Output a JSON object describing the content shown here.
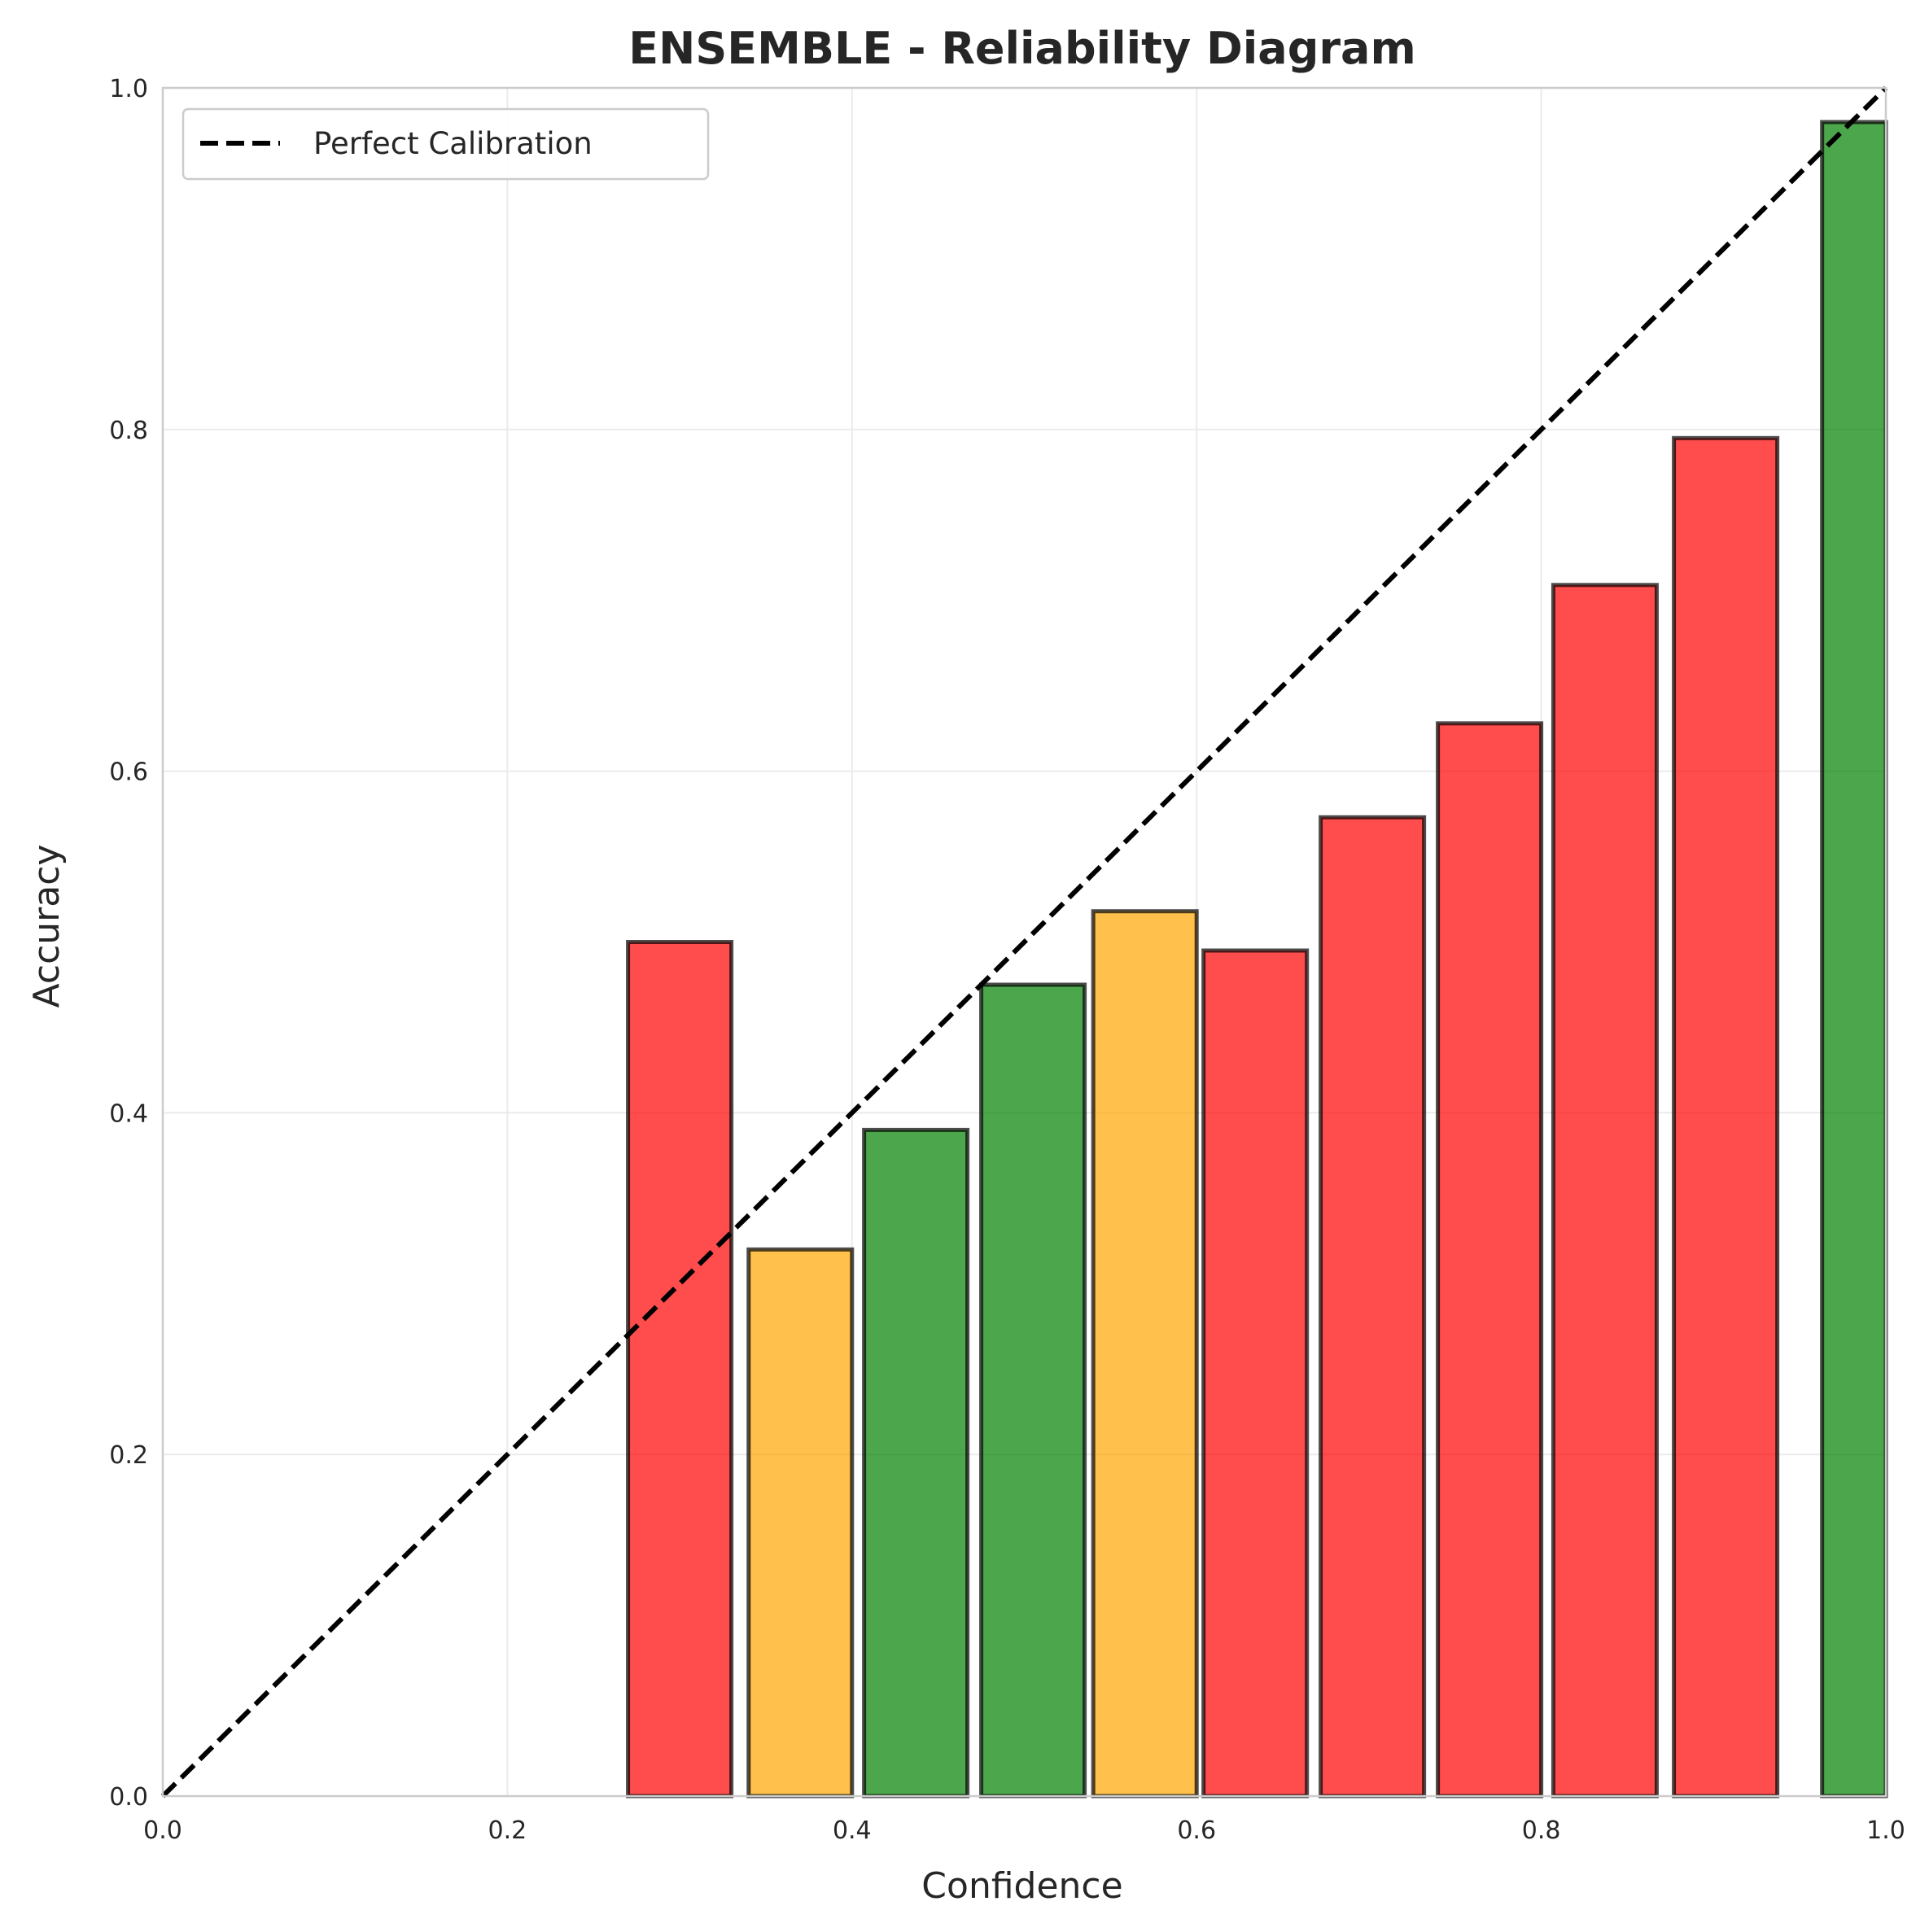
{
  "chart_data": {
    "type": "bar",
    "title": "ENSEMBLE - Reliability Diagram",
    "xlabel": "Confidence",
    "ylabel": "Accuracy",
    "xlim": [
      0,
      1
    ],
    "ylim": [
      0,
      1
    ],
    "xticks": [
      "0.0",
      "0.2",
      "0.4",
      "0.6",
      "0.8",
      "1.0"
    ],
    "yticks": [
      "0.0",
      "0.2",
      "0.4",
      "0.6",
      "0.8",
      "1.0"
    ],
    "grid": true,
    "legend": {
      "position": "upper-left",
      "entries": [
        "Perfect Calibration"
      ]
    },
    "reference_line": {
      "name": "Perfect Calibration",
      "x": [
        0,
        1
      ],
      "y": [
        0,
        1
      ],
      "style": "dashed",
      "color": "#000000"
    },
    "colors": {
      "red": "#ff0000",
      "orange": "#ffa500",
      "green": "#008000"
    },
    "bars": [
      {
        "x": 0.255,
        "width": 0.048,
        "value": 0.0,
        "color": "red"
      },
      {
        "x": 0.3,
        "width": 0.06,
        "value": 0.5,
        "color": "red"
      },
      {
        "x": 0.37,
        "width": 0.06,
        "value": 0.32,
        "color": "orange"
      },
      {
        "x": 0.437,
        "width": 0.06,
        "value": 0.39,
        "color": "green"
      },
      {
        "x": 0.505,
        "width": 0.06,
        "value": 0.475,
        "color": "green"
      },
      {
        "x": 0.57,
        "width": 0.06,
        "value": 0.518,
        "color": "orange"
      },
      {
        "x": 0.634,
        "width": 0.06,
        "value": 0.495,
        "color": "red"
      },
      {
        "x": 0.702,
        "width": 0.06,
        "value": 0.573,
        "color": "red"
      },
      {
        "x": 0.77,
        "width": 0.06,
        "value": 0.628,
        "color": "red"
      },
      {
        "x": 0.837,
        "width": 0.06,
        "value": 0.709,
        "color": "red"
      },
      {
        "x": 0.907,
        "width": 0.06,
        "value": 0.795,
        "color": "red"
      },
      {
        "x": 0.983,
        "width": 0.04,
        "value": 0.98,
        "color": "green"
      }
    ]
  }
}
